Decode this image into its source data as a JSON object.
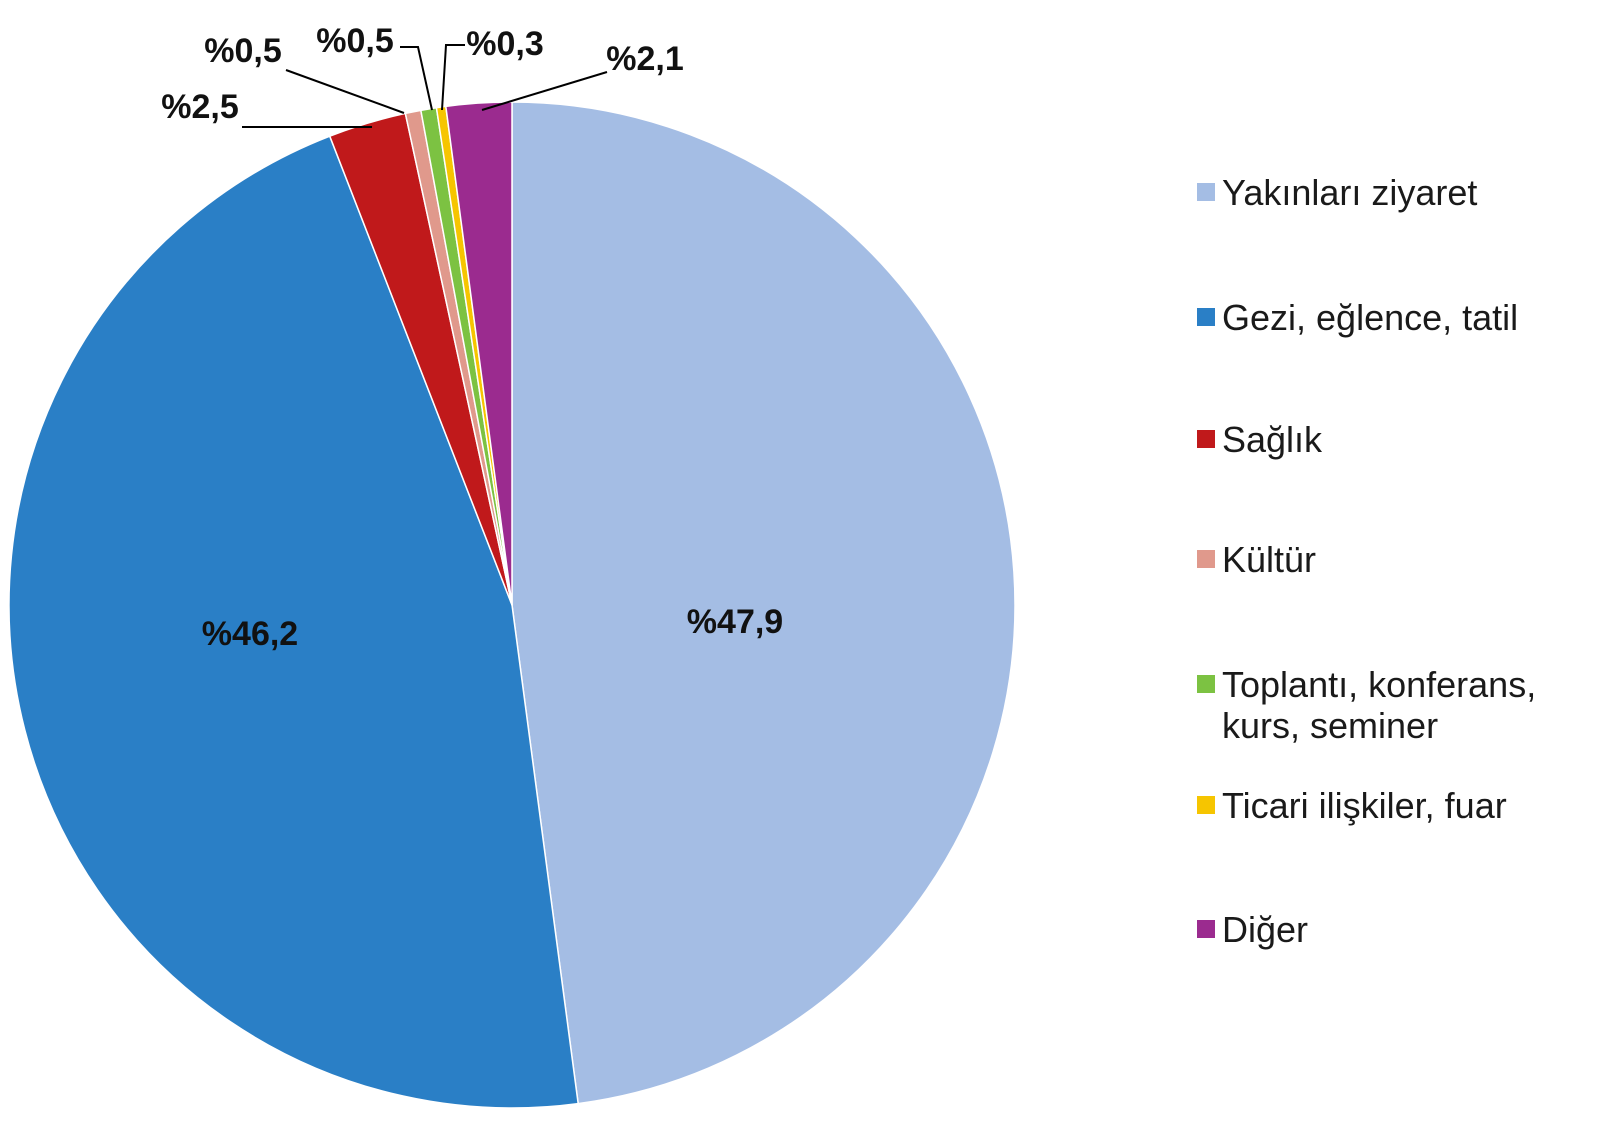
{
  "chart_data": {
    "type": "pie",
    "title": "",
    "start": "12 o'clock",
    "direction": "clockwise",
    "legend_position": "right",
    "slices": [
      {
        "name": "Yakınları ziyaret",
        "value": 47.9,
        "label": "%47,9",
        "color": "#a4bde4"
      },
      {
        "name": "Gezi, eğlence, tatil",
        "value": 46.2,
        "label": "%46,2",
        "color": "#2a7fc6"
      },
      {
        "name": "Sağlık",
        "value": 2.5,
        "label": "%2,5",
        "color": "#c0191b"
      },
      {
        "name": "Kültür",
        "value": 0.5,
        "label": "%0,5",
        "color": "#e0998c"
      },
      {
        "name": "Toplantı, konferans, kurs, seminer",
        "value": 0.5,
        "label": "%0,5",
        "color": "#7cc242"
      },
      {
        "name": "Ticari ilişkiler, fuar",
        "value": 0.3,
        "label": "%0,3",
        "color": "#f6c500"
      },
      {
        "name": "Diğer",
        "value": 2.1,
        "label": "%2,1",
        "color": "#9b2b8f"
      }
    ],
    "legend": [
      {
        "lines": [
          "Yakınları ziyaret"
        ],
        "color": "#a4bde4"
      },
      {
        "lines": [
          "Gezi, eğlence, tatil"
        ],
        "color": "#2a7fc6"
      },
      {
        "lines": [
          "Sağlık"
        ],
        "color": "#c0191b"
      },
      {
        "lines": [
          "Kültür"
        ],
        "color": "#e0998c"
      },
      {
        "lines": [
          "Toplantı, konferans,",
          "kurs, seminer"
        ],
        "color": "#7cc242"
      },
      {
        "lines": [
          "Ticari ilişkiler, fuar"
        ],
        "color": "#f6c500"
      },
      {
        "lines": [
          "Diğer"
        ],
        "color": "#9b2b8f"
      }
    ]
  }
}
